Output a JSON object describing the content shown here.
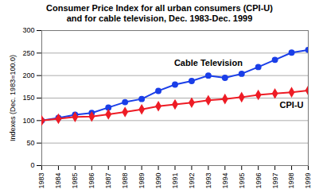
{
  "chart_data": {
    "type": "line",
    "title": "Consumer Price Index for all urban consumers (CPI-U)",
    "subtitle": "and for cable television, Dec. 1983-Dec. 1999",
    "y_label": "Indexes (Dec. 1983=100.0)",
    "x": [
      1983,
      1984,
      1985,
      1986,
      1987,
      1988,
      1989,
      1990,
      1991,
      1992,
      1993,
      1994,
      1995,
      1996,
      1997,
      1998,
      1999
    ],
    "xlim": [
      1983,
      1999
    ],
    "xticks": [
      1983,
      1984,
      1985,
      1986,
      1987,
      1988,
      1989,
      1990,
      1991,
      1992,
      1993,
      1994,
      1995,
      1996,
      1997,
      1998,
      1999
    ],
    "ylim": [
      0,
      300
    ],
    "yticks": [
      0,
      50,
      100,
      150,
      200,
      250,
      300
    ],
    "grid": true,
    "series": [
      {
        "name": "Cable Television",
        "color": "#1a3ee8",
        "marker": "circle",
        "values": [
          100,
          106,
          113,
          117,
          129,
          141,
          148,
          166,
          180,
          188,
          200,
          195,
          204,
          219,
          235,
          251,
          257
        ]
      },
      {
        "name": "CPI-U",
        "color": "#ee1c25",
        "marker": "diamond",
        "values": [
          100,
          104,
          108,
          109,
          114,
          119,
          125,
          132,
          136,
          140,
          145,
          148,
          152,
          157,
          160,
          163,
          167
        ]
      }
    ]
  }
}
